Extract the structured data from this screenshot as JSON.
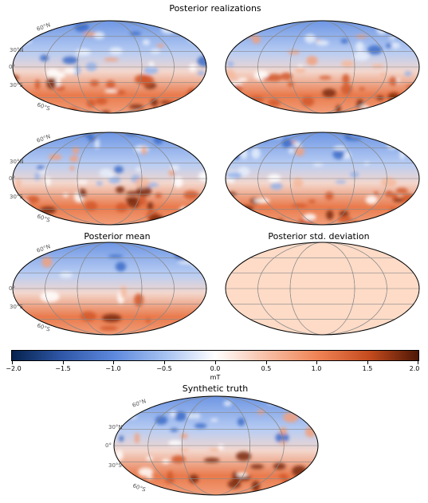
{
  "titles": {
    "realizations": "Posterior realizations",
    "mean": "Posterior mean",
    "std": "Posterior std. deviation",
    "truth": "Synthetic truth"
  },
  "lat_labels": [
    "60°N",
    "30°N",
    "0°",
    "30°S",
    "60°S"
  ],
  "colorbar": {
    "ticks": [
      "−2.0",
      "−1.5",
      "−1.0",
      "−0.5",
      "0.0",
      "0.5",
      "1.0",
      "1.5",
      "2.0"
    ],
    "unit": "mT",
    "colormap": [
      "#05224e",
      "#2f56a6",
      "#5d88dd",
      "#a8c3f1",
      "#ffffff",
      "#f7c2aa",
      "#f08456",
      "#c44b1e",
      "#4d1706"
    ]
  },
  "colors": {
    "north": "#6c95e3",
    "equator": "#f3d6cc",
    "south": "#e97a4c",
    "std_fill": "#fddbc7",
    "outline": "#000000",
    "grid": "#888888"
  }
}
